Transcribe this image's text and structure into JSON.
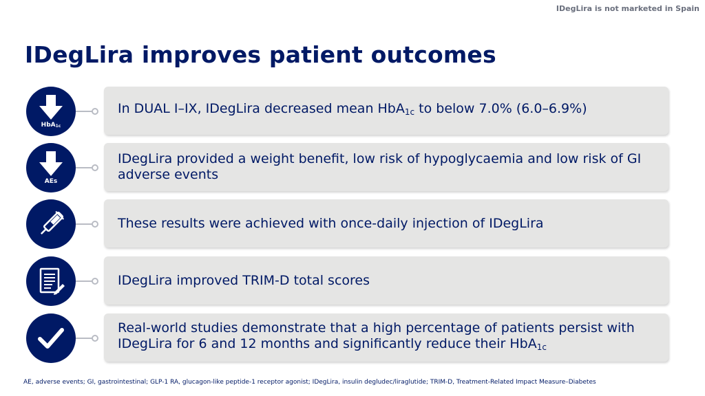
{
  "header": {
    "disclaimer": "IDegLira is not marketed in Spain"
  },
  "title": "IDegLira improves patient outcomes",
  "rows": [
    {
      "icon": "down-arrow-icon",
      "icon_label": "HbA",
      "icon_label_sub": "1c",
      "text_before": "In DUAL I–IX, IDegLira decreased mean HbA",
      "text_sub": "1c",
      "text_after": " to below 7.0% (6.0–6.9%)"
    },
    {
      "icon": "down-arrow-icon",
      "icon_label": "AEs",
      "text": "IDegLira provided a weight benefit, low risk of hypoglycaemia and low risk of GI adverse events"
    },
    {
      "icon": "injection-pen-icon",
      "text": "These results were achieved with once-daily injection of IDegLira"
    },
    {
      "icon": "document-pencil-icon",
      "text": "IDegLira improved TRIM-D total scores"
    },
    {
      "icon": "checkmark-icon",
      "text_before": "Real-world studies demonstrate that a high percentage of patients persist with IDegLira for 6 and 12 months and significantly reduce their HbA",
      "text_sub": "1c"
    }
  ],
  "footnote": "AE, adverse events; GI, gastrointestinal; GLP-1 RA, glucagon-like peptide-1 receptor agonist; IDegLira, insulin degludec/liraglutide; TRIM-D, Treatment-Related Impact Measure–Diabetes",
  "colors": {
    "navy": "#001965",
    "box": "#e5e5e4",
    "connector": "#b9bcc4"
  }
}
